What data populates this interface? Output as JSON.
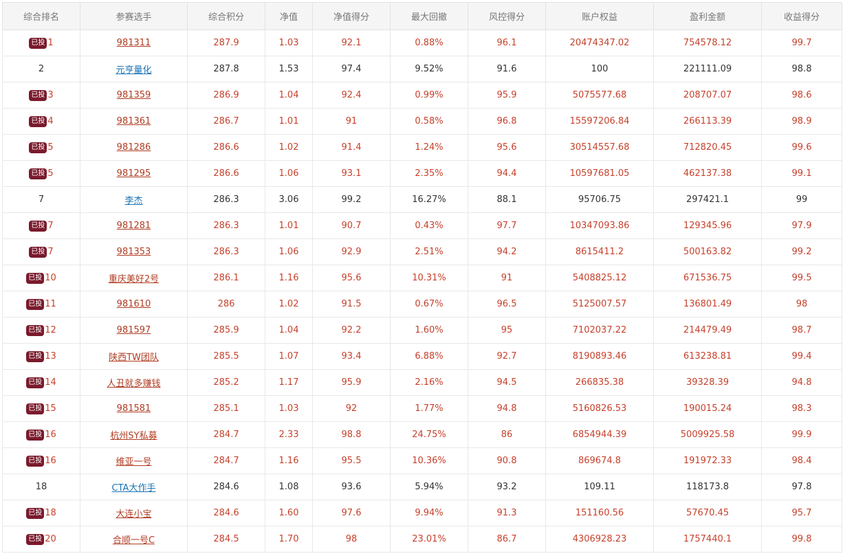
{
  "headers": [
    "综合排名",
    "参赛选手",
    "综合积分",
    "净值",
    "净值得分",
    "最大回撤",
    "风控得分",
    "账户权益",
    "盈利金额",
    "收益得分"
  ],
  "badge_text": "已投",
  "colors": {
    "invested_text": "#c6412c",
    "plain_text": "#333333",
    "plain_link": "#1a73b6",
    "badge_bg": "#7a1a2c"
  },
  "rows": [
    {
      "invested": true,
      "rank": "1",
      "name": "981311",
      "score": "287.9",
      "nav": "1.03",
      "nav_score": "92.1",
      "max_drawdown": "0.88%",
      "risk_score": "96.1",
      "equity": "20474347.02",
      "profit": "754578.12",
      "return_score": "99.7"
    },
    {
      "invested": false,
      "rank": "2",
      "name": "元亨量化",
      "score": "287.8",
      "nav": "1.53",
      "nav_score": "97.4",
      "max_drawdown": "9.52%",
      "risk_score": "91.6",
      "equity": "100",
      "profit": "221111.09",
      "return_score": "98.8"
    },
    {
      "invested": true,
      "rank": "3",
      "name": "981359",
      "score": "286.9",
      "nav": "1.04",
      "nav_score": "92.4",
      "max_drawdown": "0.99%",
      "risk_score": "95.9",
      "equity": "5075577.68",
      "profit": "208707.07",
      "return_score": "98.6"
    },
    {
      "invested": true,
      "rank": "4",
      "name": "981361",
      "score": "286.7",
      "nav": "1.01",
      "nav_score": "91",
      "max_drawdown": "0.58%",
      "risk_score": "96.8",
      "equity": "15597206.84",
      "profit": "266113.39",
      "return_score": "98.9"
    },
    {
      "invested": true,
      "rank": "5",
      "name": "981286",
      "score": "286.6",
      "nav": "1.02",
      "nav_score": "91.4",
      "max_drawdown": "1.24%",
      "risk_score": "95.6",
      "equity": "30514557.68",
      "profit": "712820.45",
      "return_score": "99.6"
    },
    {
      "invested": true,
      "rank": "5",
      "name": "981295",
      "score": "286.6",
      "nav": "1.06",
      "nav_score": "93.1",
      "max_drawdown": "2.35%",
      "risk_score": "94.4",
      "equity": "10597681.05",
      "profit": "462137.38",
      "return_score": "99.1"
    },
    {
      "invested": false,
      "rank": "7",
      "name": "李杰",
      "score": "286.3",
      "nav": "3.06",
      "nav_score": "99.2",
      "max_drawdown": "16.27%",
      "risk_score": "88.1",
      "equity": "95706.75",
      "profit": "297421.1",
      "return_score": "99"
    },
    {
      "invested": true,
      "rank": "7",
      "name": "981281",
      "score": "286.3",
      "nav": "1.01",
      "nav_score": "90.7",
      "max_drawdown": "0.43%",
      "risk_score": "97.7",
      "equity": "10347093.86",
      "profit": "129345.96",
      "return_score": "97.9"
    },
    {
      "invested": true,
      "rank": "7",
      "name": "981353",
      "score": "286.3",
      "nav": "1.06",
      "nav_score": "92.9",
      "max_drawdown": "2.51%",
      "risk_score": "94.2",
      "equity": "8615411.2",
      "profit": "500163.82",
      "return_score": "99.2"
    },
    {
      "invested": true,
      "rank": "10",
      "name": "重庆美好2号",
      "score": "286.1",
      "nav": "1.16",
      "nav_score": "95.6",
      "max_drawdown": "10.31%",
      "risk_score": "91",
      "equity": "5408825.12",
      "profit": "671536.75",
      "return_score": "99.5"
    },
    {
      "invested": true,
      "rank": "11",
      "name": "981610",
      "score": "286",
      "nav": "1.02",
      "nav_score": "91.5",
      "max_drawdown": "0.67%",
      "risk_score": "96.5",
      "equity": "5125007.57",
      "profit": "136801.49",
      "return_score": "98"
    },
    {
      "invested": true,
      "rank": "12",
      "name": "981597",
      "score": "285.9",
      "nav": "1.04",
      "nav_score": "92.2",
      "max_drawdown": "1.60%",
      "risk_score": "95",
      "equity": "7102037.22",
      "profit": "214479.49",
      "return_score": "98.7"
    },
    {
      "invested": true,
      "rank": "13",
      "name": "陕西TW团队",
      "score": "285.5",
      "nav": "1.07",
      "nav_score": "93.4",
      "max_drawdown": "6.88%",
      "risk_score": "92.7",
      "equity": "8190893.46",
      "profit": "613238.81",
      "return_score": "99.4"
    },
    {
      "invested": true,
      "rank": "14",
      "name": "人丑就多赚钱",
      "score": "285.2",
      "nav": "1.17",
      "nav_score": "95.9",
      "max_drawdown": "2.16%",
      "risk_score": "94.5",
      "equity": "266835.38",
      "profit": "39328.39",
      "return_score": "94.8"
    },
    {
      "invested": true,
      "rank": "15",
      "name": "981581",
      "score": "285.1",
      "nav": "1.03",
      "nav_score": "92",
      "max_drawdown": "1.77%",
      "risk_score": "94.8",
      "equity": "5160826.53",
      "profit": "190015.24",
      "return_score": "98.3"
    },
    {
      "invested": true,
      "rank": "16",
      "name": "杭州SY私募",
      "score": "284.7",
      "nav": "2.33",
      "nav_score": "98.8",
      "max_drawdown": "24.75%",
      "risk_score": "86",
      "equity": "6854944.39",
      "profit": "5009925.58",
      "return_score": "99.9"
    },
    {
      "invested": true,
      "rank": "16",
      "name": "维亚一号",
      "score": "284.7",
      "nav": "1.16",
      "nav_score": "95.5",
      "max_drawdown": "10.36%",
      "risk_score": "90.8",
      "equity": "869674.8",
      "profit": "191972.33",
      "return_score": "98.4"
    },
    {
      "invested": false,
      "rank": "18",
      "name": "CTA大作手",
      "score": "284.6",
      "nav": "1.08",
      "nav_score": "93.6",
      "max_drawdown": "5.94%",
      "risk_score": "93.2",
      "equity": "109.11",
      "profit": "118173.8",
      "return_score": "97.8"
    },
    {
      "invested": true,
      "rank": "18",
      "name": "大连小宝",
      "score": "284.6",
      "nav": "1.60",
      "nav_score": "97.6",
      "max_drawdown": "9.94%",
      "risk_score": "91.3",
      "equity": "151160.56",
      "profit": "57670.45",
      "return_score": "95.7"
    },
    {
      "invested": true,
      "rank": "20",
      "name": "合顺一号C",
      "score": "284.5",
      "nav": "1.70",
      "nav_score": "98",
      "max_drawdown": "23.01%",
      "risk_score": "86.7",
      "equity": "4306928.23",
      "profit": "1757440.1",
      "return_score": "99.8"
    }
  ]
}
